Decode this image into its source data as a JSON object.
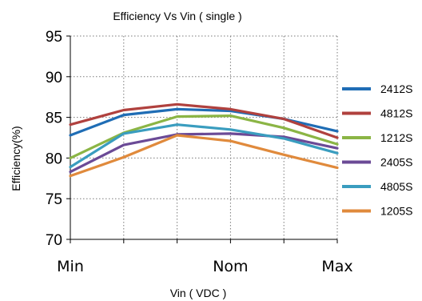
{
  "chart_data": {
    "type": "line",
    "title": "Efficiency  Vs Vin ( single )",
    "xlabel": "Vin ( VDC )",
    "ylabel": "Efficiency(%)",
    "x": [
      "Min",
      "",
      "",
      "Nom",
      "",
      "Max"
    ],
    "ylim": [
      70,
      95
    ],
    "yticks": [
      70,
      75,
      80,
      85,
      90,
      95
    ],
    "grid": "dotted",
    "legend_position": "right",
    "series": [
      {
        "name": "2412S",
        "color": "#1f6db5",
        "values": [
          82.8,
          85.3,
          86.0,
          85.8,
          84.8,
          83.3
        ]
      },
      {
        "name": "4812S",
        "color": "#b0413e",
        "values": [
          84.1,
          85.9,
          86.6,
          86.0,
          84.8,
          82.5
        ]
      },
      {
        "name": "1212S",
        "color": "#8bb545",
        "values": [
          80.0,
          83.1,
          85.1,
          85.2,
          83.7,
          81.7
        ]
      },
      {
        "name": "2405S",
        "color": "#6b4a96",
        "values": [
          78.3,
          81.6,
          82.9,
          83.0,
          82.6,
          81.2
        ]
      },
      {
        "name": "4805S",
        "color": "#3a9dbf",
        "values": [
          78.9,
          83.0,
          84.1,
          83.5,
          82.4,
          80.6
        ]
      },
      {
        "name": "1205S",
        "color": "#e08a3c",
        "values": [
          77.8,
          80.1,
          82.8,
          82.1,
          80.4,
          78.8
        ]
      }
    ]
  }
}
